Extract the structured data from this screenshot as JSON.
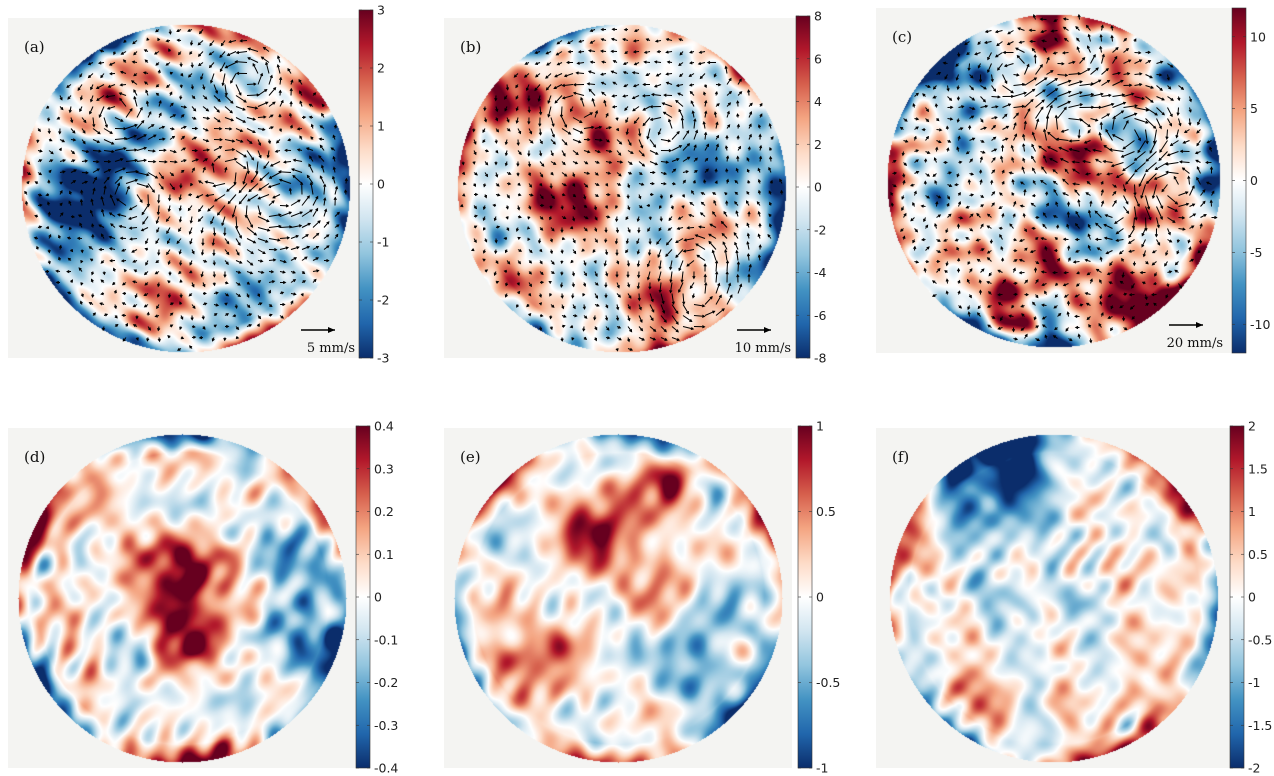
{
  "colormap": [
    "#0b2d6b",
    "#2166ac",
    "#4393c3",
    "#92c5de",
    "#d1e5f0",
    "#ffffff",
    "#fddbc7",
    "#f4a582",
    "#d6604d",
    "#b2182b",
    "#67001f"
  ],
  "background": "#f4f4f2",
  "chart_data": [
    {
      "type": "heatmap",
      "panel_label": "(a)",
      "colorbar": {
        "min": -3,
        "max": 3,
        "ticks": [
          "3",
          "2",
          "1",
          "0",
          "-1",
          "-2",
          "-3"
        ]
      },
      "vectors": true,
      "scale_label": "5 mm/s",
      "seed": 11,
      "level": 0.85
    },
    {
      "type": "heatmap",
      "panel_label": "(b)",
      "colorbar": {
        "min": -8,
        "max": 8,
        "ticks": [
          "8",
          "6",
          "4",
          "2",
          "0",
          "-2",
          "-4",
          "-6",
          "-8"
        ]
      },
      "vectors": true,
      "scale_label": "10 mm/s",
      "seed": 23,
      "level": 0.75
    },
    {
      "type": "heatmap",
      "panel_label": "(c)",
      "colorbar": {
        "min": -12,
        "max": 12,
        "ticks": [
          "10",
          "5",
          "0",
          "-5",
          "-10"
        ],
        "tick_values": [
          10,
          5,
          0,
          -5,
          -10
        ]
      },
      "vectors": true,
      "scale_label": "20 mm/s",
      "seed": 37,
      "level": 1.0
    },
    {
      "type": "heatmap",
      "panel_label": "(d)",
      "colorbar": {
        "min": -0.4,
        "max": 0.4,
        "ticks": [
          "0.4",
          "0.3",
          "0.2",
          "0.1",
          "0",
          "-0.1",
          "-0.2",
          "-0.3",
          "-0.4"
        ]
      },
      "vectors": false,
      "scale_label": "",
      "seed": 41,
      "level": 0.8
    },
    {
      "type": "heatmap",
      "panel_label": "(e)",
      "colorbar": {
        "min": -1,
        "max": 1,
        "ticks": [
          "1",
          "0.5",
          "0",
          "-0.5",
          "-1"
        ]
      },
      "vectors": false,
      "scale_label": "",
      "seed": 53,
      "level": 0.75
    },
    {
      "type": "heatmap",
      "panel_label": "(f)",
      "colorbar": {
        "min": -2,
        "max": 2,
        "ticks": [
          "2",
          "1.5",
          "1",
          "0.5",
          "0",
          "-0.5",
          "-1",
          "-1.5",
          "-2"
        ]
      },
      "vectors": false,
      "scale_label": "",
      "seed": 67,
      "level": 0.7
    }
  ]
}
